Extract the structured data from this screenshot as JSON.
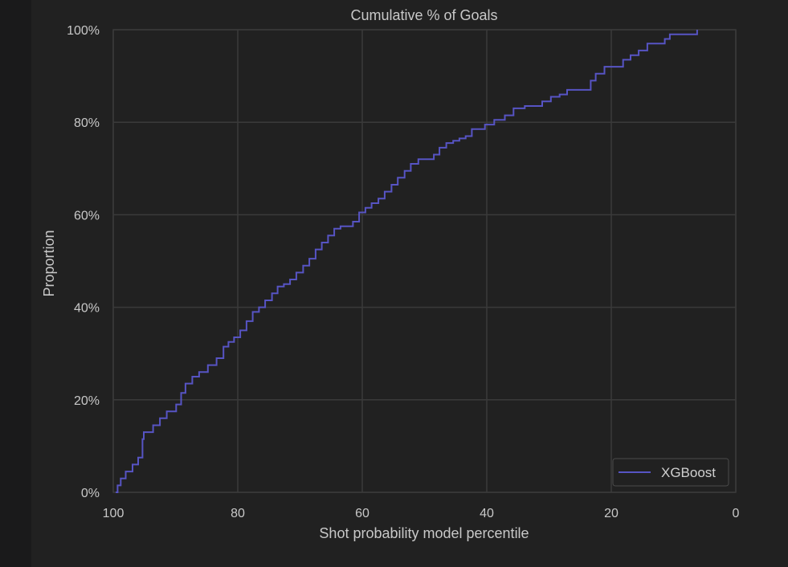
{
  "chart_data": {
    "type": "line",
    "title": "Cumulative % of Goals",
    "xlabel": "Shot probability model percentile",
    "ylabel": "Proportion",
    "xlim": [
      100,
      0
    ],
    "ylim": [
      0,
      100
    ],
    "x_ticks": [
      100,
      80,
      60,
      40,
      20,
      0
    ],
    "x_tick_labels": [
      "100",
      "80",
      "60",
      "40",
      "20",
      "0"
    ],
    "y_ticks": [
      0,
      20,
      40,
      60,
      80,
      100
    ],
    "y_tick_labels": [
      "0%",
      "20%",
      "40%",
      "60%",
      "80%",
      "100%"
    ],
    "grid": true,
    "legend_position": "bottom-right",
    "series": [
      {
        "name": "XGBoost",
        "color": "#5754c4",
        "x": [
          99.6,
          99.3,
          98.8,
          98.0,
          96.9,
          96.0,
          95.3,
          95.1,
          94.6,
          93.6,
          92.5,
          91.4,
          89.9,
          89.1,
          88.4,
          87.3,
          86.2,
          84.8,
          83.4,
          82.3,
          81.5,
          80.6,
          79.6,
          78.6,
          77.6,
          76.6,
          75.6,
          74.5,
          73.6,
          72.6,
          71.6,
          70.6,
          69.5,
          68.5,
          67.5,
          66.5,
          65.5,
          64.5,
          63.5,
          62.5,
          61.5,
          60.5,
          59.5,
          58.5,
          57.4,
          56.4,
          55.3,
          54.3,
          53.2,
          52.2,
          51.0,
          49.8,
          48.5,
          47.6,
          46.5,
          45.4,
          44.4,
          43.4,
          42.4,
          41.4,
          40.3,
          38.8,
          37.1,
          35.7,
          33.9,
          31.1,
          29.7,
          28.3,
          27.1,
          25.5,
          23.3,
          22.5,
          21.1,
          18.1,
          16.9,
          15.6,
          14.2,
          12.4,
          11.4,
          10.6,
          7.1,
          6.2
        ],
        "y": [
          0.0,
          1.5,
          3.0,
          4.5,
          6.0,
          7.5,
          11.5,
          13.0,
          13.0,
          14.5,
          16.0,
          17.5,
          19.0,
          21.5,
          23.5,
          25.0,
          26.0,
          27.5,
          29.0,
          31.5,
          32.5,
          33.5,
          35.0,
          37.0,
          39.0,
          40.0,
          41.5,
          43.0,
          44.5,
          45.0,
          46.0,
          47.5,
          49.0,
          50.5,
          52.5,
          54.0,
          55.5,
          57.0,
          57.5,
          57.5,
          58.5,
          60.5,
          61.5,
          62.5,
          63.5,
          65.0,
          66.5,
          68.0,
          69.5,
          71.0,
          72.0,
          72.0,
          73.0,
          74.5,
          75.5,
          76.0,
          76.5,
          77.0,
          78.5,
          78.5,
          79.5,
          80.5,
          81.5,
          83.0,
          83.5,
          84.5,
          85.5,
          86.0,
          87.0,
          87.0,
          89.0,
          90.5,
          92.0,
          93.5,
          94.5,
          95.5,
          97.0,
          97.0,
          98.0,
          99.0,
          99.0,
          100.0
        ]
      }
    ]
  }
}
